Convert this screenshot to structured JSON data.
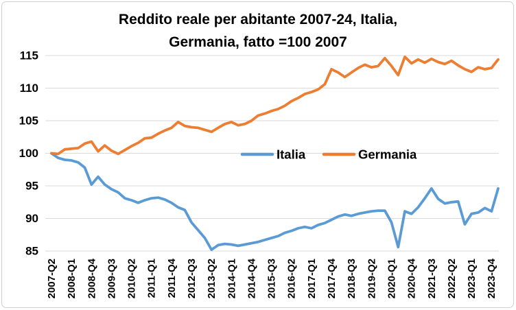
{
  "window": {
    "background": "#ffffff",
    "frame_border_color": "#cfcfcf"
  },
  "chart_data": {
    "type": "line",
    "title_line1": "Reddito reale per abitante 2007-24, Italia,",
    "title_line2": "Germania, fatto =100 2007",
    "title_color": "#000000",
    "grid": true,
    "gridline_color": "#d9d9d9",
    "axis_text_color": "#000000",
    "ylim": [
      85,
      115
    ],
    "y_ticks": [
      115,
      110,
      105,
      100,
      95,
      90,
      85
    ],
    "x_tick_every": 3,
    "x_tick_labels": [
      "2007-Q2",
      "2008-Q1",
      "2008-Q4",
      "2009-Q3",
      "2010-Q2",
      "2011-Q1",
      "2011-Q4",
      "2012-Q3",
      "2013-Q2",
      "2014-Q1",
      "2014-Q4",
      "2015-Q3",
      "2016-Q2",
      "2017-Q1",
      "2017-Q4",
      "2018-Q3",
      "2019-Q2",
      "2020-Q1",
      "2020-Q4",
      "2021-Q3",
      "2022-Q2",
      "2023-Q1",
      "2023-Q4"
    ],
    "categories": [
      "2007-Q2",
      "2007-Q3",
      "2007-Q4",
      "2008-Q1",
      "2008-Q2",
      "2008-Q3",
      "2008-Q4",
      "2009-Q1",
      "2009-Q2",
      "2009-Q3",
      "2009-Q4",
      "2010-Q1",
      "2010-Q2",
      "2010-Q3",
      "2010-Q4",
      "2011-Q1",
      "2011-Q2",
      "2011-Q3",
      "2011-Q4",
      "2012-Q1",
      "2012-Q2",
      "2012-Q3",
      "2012-Q4",
      "2013-Q1",
      "2013-Q2",
      "2013-Q3",
      "2013-Q4",
      "2014-Q1",
      "2014-Q2",
      "2014-Q3",
      "2014-Q4",
      "2015-Q1",
      "2015-Q2",
      "2015-Q3",
      "2015-Q4",
      "2016-Q1",
      "2016-Q2",
      "2016-Q3",
      "2016-Q4",
      "2017-Q1",
      "2017-Q2",
      "2017-Q3",
      "2017-Q4",
      "2018-Q1",
      "2018-Q2",
      "2018-Q3",
      "2018-Q4",
      "2019-Q1",
      "2019-Q2",
      "2019-Q3",
      "2019-Q4",
      "2020-Q1",
      "2020-Q2",
      "2020-Q3",
      "2020-Q4",
      "2021-Q1",
      "2021-Q2",
      "2021-Q3",
      "2021-Q4",
      "2022-Q1",
      "2022-Q2",
      "2022-Q3",
      "2022-Q4",
      "2023-Q1",
      "2023-Q2",
      "2023-Q3",
      "2023-Q4",
      "2024-Q1"
    ],
    "series": [
      {
        "name": "Italia",
        "color": "#5B9BD5",
        "values": [
          100.0,
          99.3,
          99.0,
          98.9,
          98.6,
          97.8,
          95.2,
          96.4,
          95.2,
          94.5,
          94.0,
          93.1,
          92.8,
          92.4,
          92.8,
          93.1,
          93.2,
          92.9,
          92.4,
          91.7,
          91.3,
          89.4,
          88.2,
          87.0,
          85.2,
          85.9,
          86.1,
          86.0,
          85.8,
          86.0,
          86.2,
          86.4,
          86.7,
          87.0,
          87.3,
          87.8,
          88.1,
          88.5,
          88.7,
          88.5,
          89.0,
          89.3,
          89.8,
          90.3,
          90.6,
          90.4,
          90.7,
          90.9,
          91.1,
          91.2,
          91.2,
          89.4,
          85.6,
          91.1,
          90.7,
          91.7,
          93.1,
          94.6,
          93.0,
          92.3,
          92.5,
          92.6,
          89.1,
          90.7,
          90.9,
          91.6,
          91.1,
          94.6
        ]
      },
      {
        "name": "Germania",
        "color": "#ED7D31",
        "values": [
          100.0,
          99.9,
          100.6,
          100.7,
          100.8,
          101.5,
          101.8,
          100.3,
          101.2,
          100.4,
          99.9,
          100.5,
          101.1,
          101.6,
          102.3,
          102.4,
          103.0,
          103.5,
          103.9,
          104.8,
          104.2,
          104.0,
          103.9,
          103.6,
          103.3,
          103.9,
          104.5,
          104.8,
          104.3,
          104.5,
          105.0,
          105.8,
          106.1,
          106.5,
          106.8,
          107.3,
          108.0,
          108.5,
          109.1,
          109.4,
          109.8,
          110.6,
          112.9,
          112.4,
          111.7,
          112.4,
          113.1,
          113.6,
          113.2,
          113.4,
          114.6,
          113.4,
          112.0,
          114.8,
          113.8,
          114.4,
          113.9,
          114.5,
          114.0,
          113.7,
          114.2,
          113.5,
          112.9,
          112.5,
          113.2,
          112.9,
          113.1,
          114.4
        ]
      }
    ],
    "legend_position": "center-inside",
    "legend": [
      {
        "label": "Italia"
      },
      {
        "label": "Germania"
      }
    ]
  }
}
